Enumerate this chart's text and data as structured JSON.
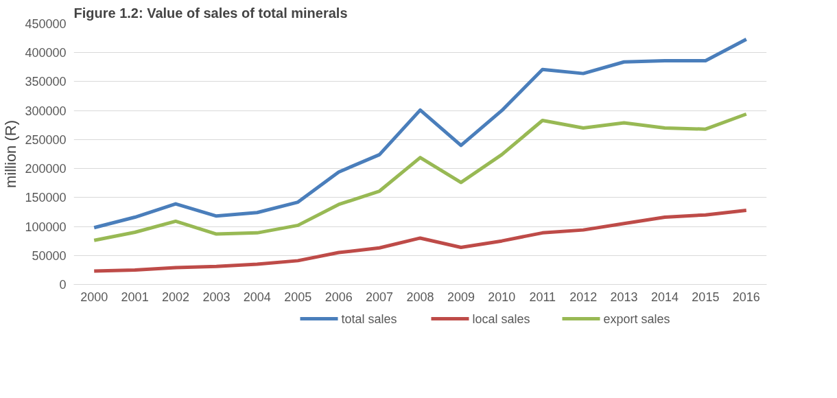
{
  "chart_data": {
    "type": "line",
    "title": "Figure 1.2: Value of sales of total minerals",
    "ylabel": "million (R)",
    "categories": [
      "2000",
      "2001",
      "2002",
      "2003",
      "2004",
      "2005",
      "2006",
      "2007",
      "2008",
      "2009",
      "2010",
      "2011",
      "2012",
      "2013",
      "2014",
      "2015",
      "2016"
    ],
    "series": [
      {
        "name": "total sales",
        "color": "#4a7ebb",
        "values": [
          98000,
          116000,
          139000,
          118000,
          124000,
          142000,
          194000,
          224000,
          301000,
          240000,
          300000,
          371000,
          364000,
          384000,
          386000,
          386000,
          423000
        ]
      },
      {
        "name": "local sales",
        "color": "#be4b48",
        "values": [
          23000,
          25000,
          29000,
          31000,
          35000,
          41000,
          55000,
          63000,
          80000,
          64000,
          75000,
          89000,
          94000,
          105000,
          116000,
          120000,
          128000
        ]
      },
      {
        "name": "export sales",
        "color": "#98b954",
        "values": [
          76000,
          90000,
          109000,
          87000,
          89000,
          102000,
          138000,
          161000,
          219000,
          176000,
          224000,
          283000,
          270000,
          279000,
          270000,
          268000,
          294000
        ]
      }
    ],
    "ylim": [
      0,
      450000
    ],
    "yticks": [
      0,
      50000,
      100000,
      150000,
      200000,
      250000,
      300000,
      350000,
      400000,
      450000
    ],
    "grid": "y",
    "legend": "bottom",
    "marker": "none",
    "line_style": "solid"
  }
}
